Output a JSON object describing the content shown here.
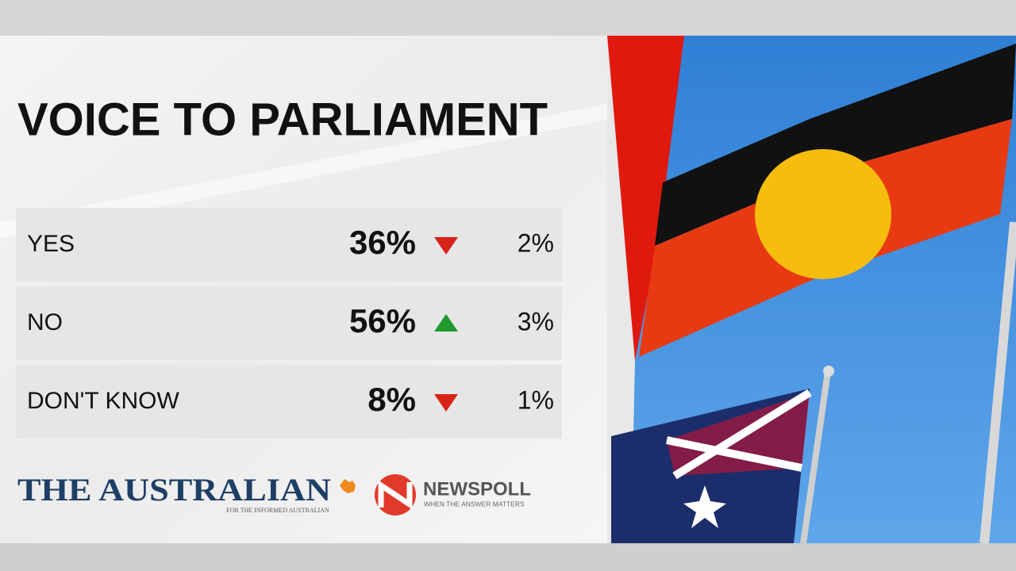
{
  "title": "VOICE TO PARLIAMENT",
  "table": {
    "rows": [
      {
        "label": "YES",
        "value": "36%",
        "direction": "down",
        "change": "2%"
      },
      {
        "label": "NO",
        "value": "56%",
        "direction": "up",
        "change": "3%"
      },
      {
        "label": "DON'T KNOW",
        "value": "8%",
        "direction": "down",
        "change": "1%"
      }
    ]
  },
  "logos": {
    "australian": "THE AUSTRALIAN",
    "australian_tagline": "FOR THE INFORMED AUSTRALIAN",
    "newspoll": "NEWSPOLL",
    "newspoll_tagline": "WHEN THE ANSWER MATTERS"
  }
}
